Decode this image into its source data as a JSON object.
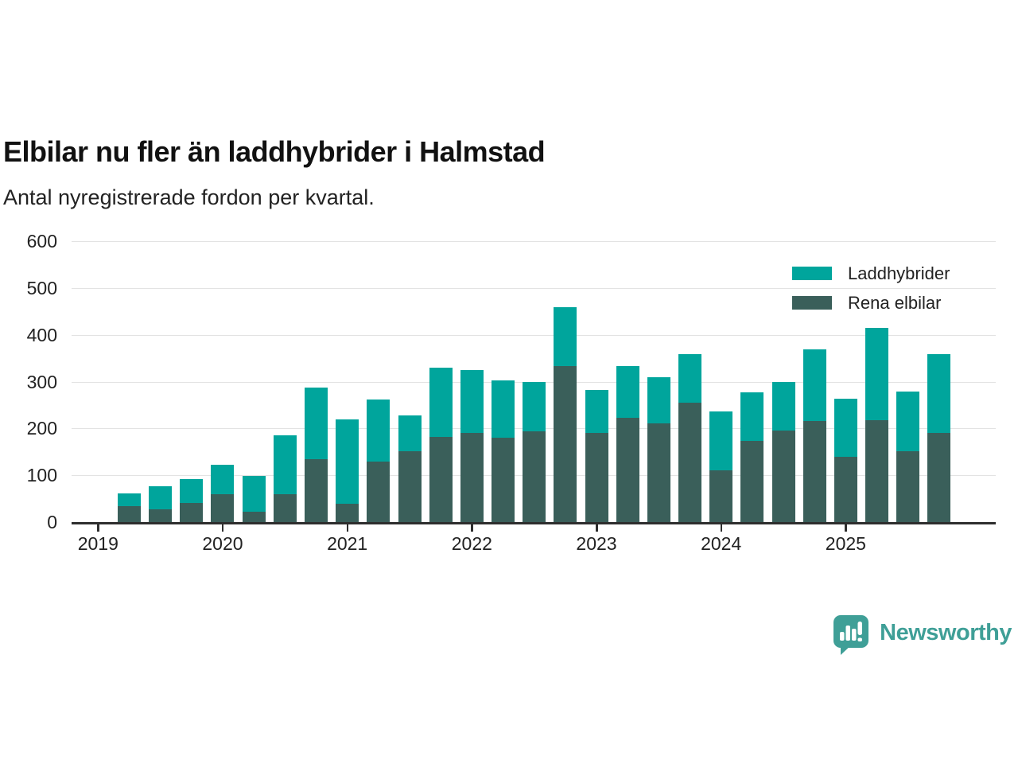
{
  "title": "Elbilar nu fler än laddhybrider i Halmstad",
  "subtitle": "Antal nyregistrerade fordon per kvartal.",
  "colors": {
    "laddhybrider": "#00a59c",
    "rena_elbilar": "#3a5f5a",
    "brand_teal": "#3f9f97",
    "gridline": "#e3e3e3",
    "axis": "#2e2e2e",
    "text": "#222222"
  },
  "legend": [
    {
      "label": "Laddhybrider",
      "color": "#00a59c"
    },
    {
      "label": "Rena elbilar",
      "color": "#3a5f5a"
    }
  ],
  "footer": {
    "brand": "Newsworthy"
  },
  "chart_data": {
    "type": "bar",
    "stacked": true,
    "title": "Elbilar nu fler än laddhybrider i Halmstad",
    "subtitle": "Antal nyregistrerade fordon per kvartal.",
    "xlabel": "",
    "ylabel": "",
    "ylim": [
      0,
      600
    ],
    "yticks": [
      0,
      100,
      200,
      300,
      400,
      500,
      600
    ],
    "xticks": [
      "2019",
      "2020",
      "2021",
      "2022",
      "2023",
      "2024",
      "2025"
    ],
    "grid": "horizontal",
    "legend_position": "top-right",
    "categories": [
      "2019-Q2",
      "2019-Q3",
      "2019-Q4",
      "2020-Q1",
      "2020-Q2",
      "2020-Q3",
      "2020-Q4",
      "2021-Q1",
      "2021-Q2",
      "2021-Q3",
      "2021-Q4",
      "2022-Q1",
      "2022-Q2",
      "2022-Q3",
      "2022-Q4",
      "2023-Q1",
      "2023-Q2",
      "2023-Q3",
      "2023-Q4",
      "2024-Q1",
      "2024-Q2",
      "2024-Q3",
      "2024-Q4",
      "2025-Q1",
      "2025-Q2",
      "2025-Q3",
      "2025-Q4"
    ],
    "series": [
      {
        "name": "Rena elbilar",
        "color": "#3a5f5a",
        "values": [
          34,
          28,
          41,
          59,
          22,
          59,
          134,
          39,
          130,
          151,
          182,
          190,
          180,
          193,
          333,
          191,
          223,
          211,
          255,
          111,
          173,
          195,
          216,
          139,
          217,
          151,
          190
        ]
      },
      {
        "name": "Laddhybrider",
        "color": "#00a59c",
        "values": [
          27,
          49,
          51,
          63,
          76,
          126,
          154,
          181,
          131,
          76,
          148,
          134,
          122,
          106,
          126,
          91,
          111,
          98,
          104,
          126,
          104,
          104,
          153,
          125,
          197,
          127,
          169
        ]
      }
    ],
    "totals": [
      61,
      77,
      92,
      122,
      98,
      185,
      288,
      220,
      261,
      227,
      330,
      324,
      302,
      299,
      459,
      282,
      334,
      309,
      359,
      237,
      277,
      299,
      369,
      264,
      414,
      278,
      359
    ]
  }
}
